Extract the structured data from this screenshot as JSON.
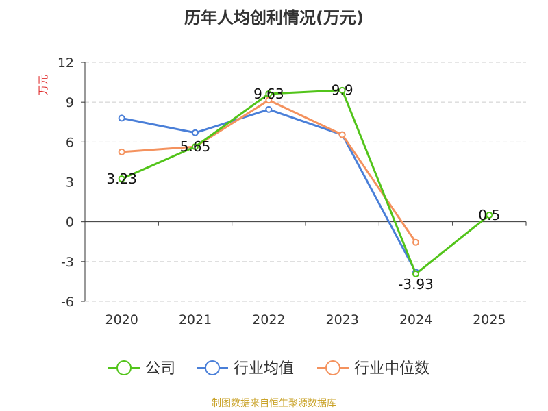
{
  "chart_data": {
    "type": "line",
    "title": "历年人均创利情况(万元)",
    "ylabel": "万元",
    "categories": [
      "2020",
      "2021",
      "2022",
      "2023",
      "2024",
      "2025"
    ],
    "ylim": [
      -6,
      12
    ],
    "yticks": [
      12,
      9,
      6,
      3,
      0,
      -3,
      -6
    ],
    "grid": true,
    "legend_position": "bottom",
    "series": [
      {
        "name": "公司",
        "color": "#52c41a",
        "values": [
          3.23,
          5.65,
          9.63,
          9.9,
          -3.93,
          0.5
        ],
        "labels": [
          "3.23",
          "5.65",
          "9.63",
          "9.9",
          "-3.93",
          "0.5"
        ]
      },
      {
        "name": "行业均值",
        "color": "#4a7fd8",
        "values": [
          7.8,
          6.7,
          8.45,
          6.55,
          -3.8,
          null
        ]
      },
      {
        "name": "行业中位数",
        "color": "#f4925e",
        "values": [
          5.25,
          5.65,
          9.15,
          6.55,
          -1.55,
          null
        ]
      }
    ]
  },
  "source_note": "制图数据来自恒生聚源数据库",
  "colors": {
    "ylabel": "#e03030",
    "source": "#c9a227"
  }
}
